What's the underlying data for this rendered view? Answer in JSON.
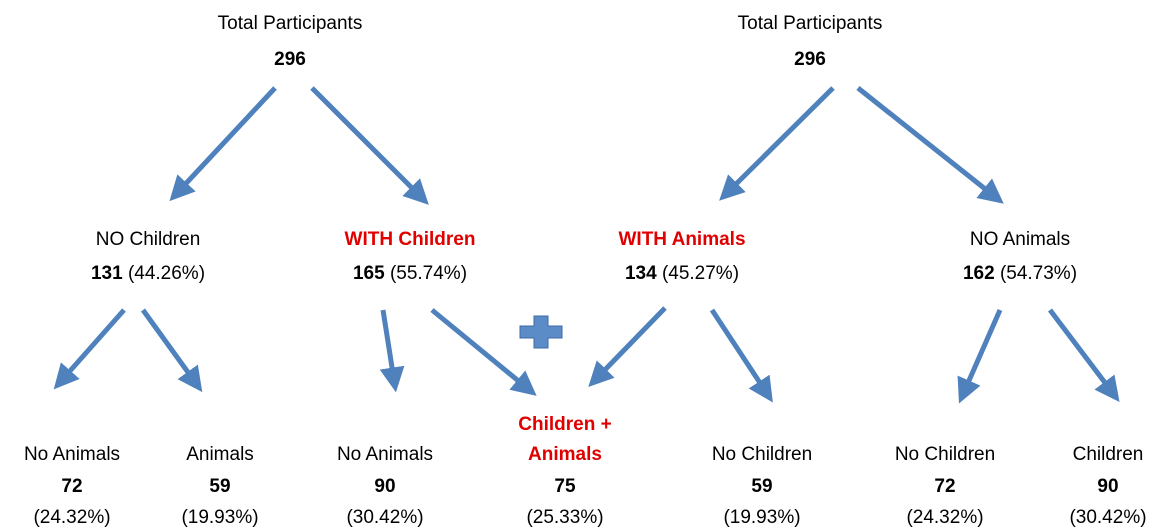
{
  "trees": [
    {
      "root": {
        "label": "Total Participants",
        "count": 296
      },
      "branches": [
        {
          "label": "NO Children",
          "count": 131,
          "percent": "(44.26%)",
          "leaves": [
            {
              "label": "No Animals",
              "count": 72,
              "percent": "(24.32%)"
            },
            {
              "label": "Animals",
              "count": 59,
              "percent": "(19.93%)"
            }
          ]
        },
        {
          "label": "WITH Children",
          "count": 165,
          "percent": "(55.74%)",
          "leaves": [
            {
              "label": "No Animals",
              "count": 90,
              "percent": "(30.42%)"
            }
          ]
        }
      ]
    },
    {
      "root": {
        "label": "Total Participants",
        "count": 296
      },
      "branches": [
        {
          "label": "WITH Animals",
          "count": 134,
          "percent": "(45.27%)",
          "leaves": [
            {
              "label": "No Children",
              "count": 59,
              "percent": "(19.93%)"
            }
          ]
        },
        {
          "label": "NO Animals",
          "count": 162,
          "percent": "(54.73%)",
          "leaves": [
            {
              "label": "No Children",
              "count": 72,
              "percent": "(24.32%)"
            },
            {
              "label": "Children",
              "count": 90,
              "percent": "(30.42%)"
            }
          ]
        }
      ]
    }
  ],
  "shared": {
    "label": "Children + Animals",
    "count": 75,
    "percent": "(25.33%)"
  }
}
